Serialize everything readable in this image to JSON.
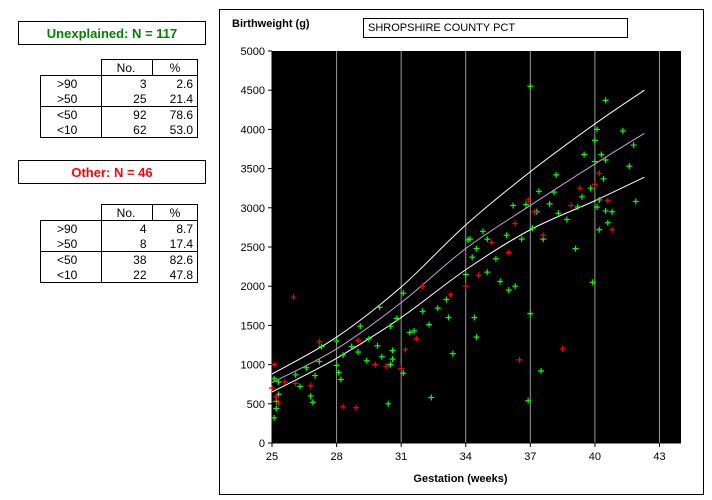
{
  "groups": [
    {
      "title": "Unexplained: N = 117",
      "color": "#008000",
      "header": [
        "No.",
        "%"
      ],
      "rows": [
        {
          "label": ">90",
          "no": "3",
          "pct": "2.6"
        },
        {
          "label": ">50",
          "no": "25",
          "pct": "21.4"
        },
        {
          "label": "<50",
          "no": "92",
          "pct": "78.6"
        },
        {
          "label": "<10",
          "no": "62",
          "pct": "53.0"
        }
      ]
    },
    {
      "title": "Other: N = 46",
      "color": "#ff0000",
      "header": [
        "No.",
        "%"
      ],
      "rows": [
        {
          "label": ">90",
          "no": "4",
          "pct": "8.7"
        },
        {
          "label": ">50",
          "no": "8",
          "pct": "17.4"
        },
        {
          "label": "<50",
          "no": "38",
          "pct": "82.6"
        },
        {
          "label": "<10",
          "no": "22",
          "pct": "47.8"
        }
      ]
    }
  ],
  "chart_data": {
    "type": "scatter",
    "title": "SHROPSHIRE COUNTY PCT",
    "xlabel": "Gestation (weeks)",
    "ylabel": "Birthweight (g)",
    "xlim": [
      25,
      44
    ],
    "ylim": [
      0,
      5000
    ],
    "xticks": [
      25,
      28,
      31,
      34,
      37,
      40,
      43
    ],
    "yticks": [
      0,
      500,
      1000,
      1500,
      2000,
      2500,
      3000,
      3500,
      4000,
      4500,
      5000
    ],
    "plot_background": "#000000",
    "grid": "vertical",
    "centile_curves": [
      {
        "color": "#ffffff",
        "points": [
          [
            25,
            880
          ],
          [
            28,
            1350
          ],
          [
            31,
            1990
          ],
          [
            34,
            2780
          ],
          [
            37,
            3460
          ],
          [
            40,
            4070
          ],
          [
            42.3,
            4500
          ]
        ]
      },
      {
        "color": "#c8a0d8",
        "points": [
          [
            25,
            770
          ],
          [
            28,
            1200
          ],
          [
            31,
            1790
          ],
          [
            34,
            2480
          ],
          [
            37,
            3030
          ],
          [
            40,
            3560
          ],
          [
            42.3,
            3950
          ]
        ]
      },
      {
        "color": "#ffffff",
        "points": [
          [
            25,
            650
          ],
          [
            28,
            1080
          ],
          [
            31,
            1600
          ],
          [
            34,
            2210
          ],
          [
            37,
            2720
          ],
          [
            40,
            3090
          ],
          [
            42.3,
            3390
          ]
        ]
      }
    ],
    "series": [
      {
        "name": "Unexplained",
        "color": "#00ff00",
        "points": [
          [
            25.1,
            320
          ],
          [
            25.2,
            440
          ],
          [
            25.3,
            620
          ],
          [
            25.2,
            530
          ],
          [
            25.3,
            780
          ],
          [
            25.1,
            820
          ],
          [
            26.1,
            870
          ],
          [
            26.3,
            720
          ],
          [
            26.8,
            600
          ],
          [
            26.9,
            520
          ],
          [
            26.6,
            960
          ],
          [
            27.2,
            1040
          ],
          [
            27.3,
            1230
          ],
          [
            28.0,
            990
          ],
          [
            28.1,
            900
          ],
          [
            28.2,
            810
          ],
          [
            28.3,
            1120
          ],
          [
            28.0,
            1300
          ],
          [
            28.7,
            1230
          ],
          [
            29.0,
            1160
          ],
          [
            29.1,
            1490
          ],
          [
            29.4,
            1050
          ],
          [
            29.9,
            1240
          ],
          [
            30.0,
            1730
          ],
          [
            30.4,
            500
          ],
          [
            30.6,
            1070
          ],
          [
            30.5,
            1000
          ],
          [
            30.6,
            1180
          ],
          [
            30.5,
            1490
          ],
          [
            30.8,
            1590
          ],
          [
            31.1,
            890
          ],
          [
            31.1,
            1910
          ],
          [
            31.4,
            1410
          ],
          [
            31.6,
            1430
          ],
          [
            32.0,
            1680
          ],
          [
            32.3,
            1510
          ],
          [
            32.4,
            580
          ],
          [
            32.7,
            1720
          ],
          [
            33.1,
            1830
          ],
          [
            33.4,
            1140
          ],
          [
            34.0,
            2150
          ],
          [
            34.1,
            2590
          ],
          [
            34.2,
            2600
          ],
          [
            34.3,
            2370
          ],
          [
            34.4,
            1600
          ],
          [
            34.5,
            1350
          ],
          [
            34.5,
            2480
          ],
          [
            34.8,
            2700
          ],
          [
            35.0,
            2600
          ],
          [
            35.0,
            2180
          ],
          [
            35.4,
            2350
          ],
          [
            35.6,
            2060
          ],
          [
            35.9,
            2650
          ],
          [
            36.0,
            1950
          ],
          [
            36.2,
            3030
          ],
          [
            36.3,
            2000
          ],
          [
            36.6,
            2600
          ],
          [
            36.8,
            3040
          ],
          [
            36.9,
            540
          ],
          [
            37.0,
            4550
          ],
          [
            37.0,
            1650
          ],
          [
            37.1,
            2740
          ],
          [
            37.3,
            2950
          ],
          [
            37.4,
            3210
          ],
          [
            37.5,
            920
          ],
          [
            37.6,
            2600
          ],
          [
            37.9,
            3050
          ],
          [
            38.1,
            3200
          ],
          [
            38.2,
            3420
          ],
          [
            38.3,
            2930
          ],
          [
            38.7,
            2850
          ],
          [
            39.1,
            2480
          ],
          [
            39.2,
            3010
          ],
          [
            39.4,
            3140
          ],
          [
            39.5,
            3680
          ],
          [
            39.8,
            3250
          ],
          [
            39.9,
            2050
          ],
          [
            40.0,
            3860
          ],
          [
            40.0,
            3590
          ],
          [
            40.1,
            4000
          ],
          [
            40.1,
            3010
          ],
          [
            40.2,
            3100
          ],
          [
            40.2,
            2720
          ],
          [
            40.3,
            3680
          ],
          [
            40.4,
            3370
          ],
          [
            40.5,
            4370
          ],
          [
            40.5,
            3610
          ],
          [
            40.5,
            2960
          ],
          [
            40.6,
            2810
          ],
          [
            40.8,
            2950
          ],
          [
            41.3,
            3980
          ],
          [
            41.6,
            3530
          ],
          [
            41.8,
            3800
          ],
          [
            41.9,
            3080
          ],
          [
            30.1,
            1100
          ],
          [
            29.5,
            1330
          ],
          [
            33.2,
            1600
          ],
          [
            27.0,
            860
          ]
        ]
      },
      {
        "name": "Other",
        "color": "#ff0000",
        "points": [
          [
            25.0,
            700
          ],
          [
            25.1,
            1000
          ],
          [
            25.2,
            590
          ],
          [
            25.3,
            510
          ],
          [
            25.6,
            780
          ],
          [
            26.0,
            1860
          ],
          [
            26.1,
            760
          ],
          [
            26.8,
            730
          ],
          [
            27.2,
            1290
          ],
          [
            28.3,
            460
          ],
          [
            28.9,
            450
          ],
          [
            29.0,
            1310
          ],
          [
            29.8,
            1000
          ],
          [
            30.3,
            980
          ],
          [
            31.0,
            950
          ],
          [
            31.2,
            1190
          ],
          [
            31.7,
            1330
          ],
          [
            32.0,
            2000
          ],
          [
            33.3,
            1890
          ],
          [
            34.0,
            2000
          ],
          [
            34.6,
            2140
          ],
          [
            35.2,
            2560
          ],
          [
            36.0,
            2430
          ],
          [
            36.3,
            2800
          ],
          [
            36.5,
            1060
          ],
          [
            37.2,
            2950
          ],
          [
            37.6,
            2650
          ],
          [
            38.5,
            1200
          ],
          [
            38.9,
            3030
          ],
          [
            40.0,
            3300
          ],
          [
            40.6,
            3090
          ],
          [
            40.2,
            3440
          ],
          [
            40.8,
            2720
          ],
          [
            39.3,
            3250
          ],
          [
            36.9,
            3100
          ]
        ]
      }
    ]
  }
}
